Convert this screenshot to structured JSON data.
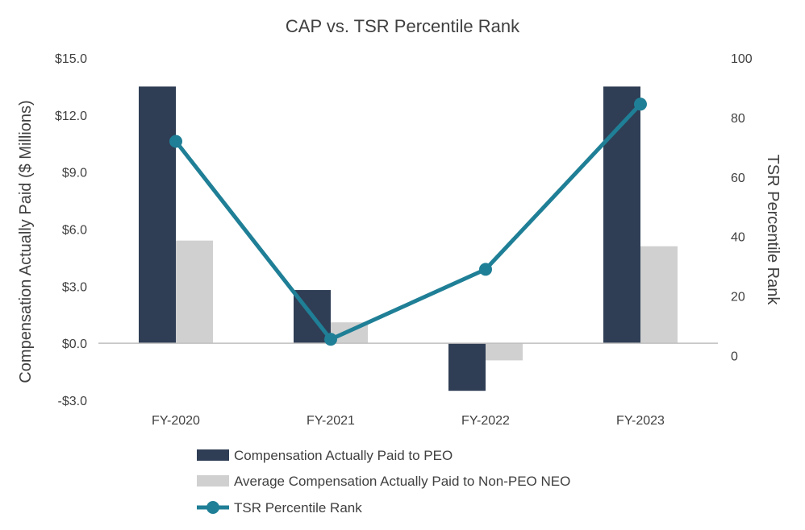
{
  "chart_data": {
    "type": "bar",
    "title": "CAP vs. TSR Percentile Rank",
    "categories": [
      "FY-2020",
      "FY-2021",
      "FY-2022",
      "FY-2023"
    ],
    "ylabel": "Compensation Actually Paid ($ Millions)",
    "y2label": "TSR Percentile Rank",
    "ylim": [
      -3,
      15
    ],
    "y2lim": [
      -15,
      100
    ],
    "yticks": [
      -3,
      0,
      3,
      6,
      9,
      12,
      15
    ],
    "ytick_labels": [
      "-$3.0",
      "$0.0",
      "$3.0",
      "$6.0",
      "$9.0",
      "$12.0",
      "$15.0"
    ],
    "y2ticks": [
      0,
      20,
      40,
      60,
      80,
      100
    ],
    "y2tick_labels": [
      "0",
      "20",
      "40",
      "60",
      "80",
      "100"
    ],
    "series": [
      {
        "name": "Compensation Actually Paid to PEO",
        "kind": "bar",
        "axis": "left",
        "color": "#2f3e55",
        "values": [
          13.5,
          2.8,
          -2.5,
          13.5
        ]
      },
      {
        "name": "Average Compensation Actually Paid to Non-PEO NEO",
        "kind": "bar",
        "axis": "left",
        "color": "#d0d0d0",
        "values": [
          5.4,
          1.1,
          -0.9,
          5.1
        ]
      },
      {
        "name": "TSR Percentile Rank",
        "kind": "line",
        "axis": "right",
        "color": "#1f7f96",
        "values": [
          72,
          5.5,
          29,
          84.5
        ]
      }
    ],
    "grid": false,
    "legend_position": "bottom"
  }
}
